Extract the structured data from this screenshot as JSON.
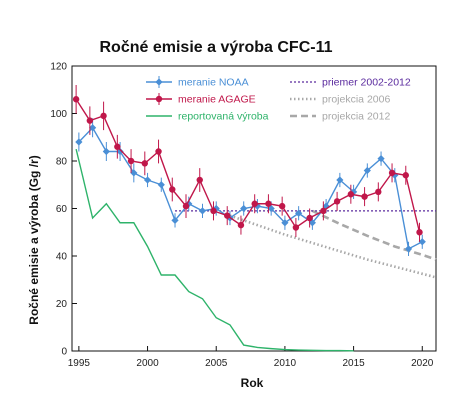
{
  "chart_data": {
    "type": "line",
    "title": "Ročné emisie a výroba CFC-11",
    "xlabel": "Rok",
    "ylabel": "Ročné emisie a výroba (Gg /r)",
    "xlim": [
      1994.5,
      2021
    ],
    "ylim": [
      0,
      120
    ],
    "x_ticks": [
      1995,
      2000,
      2005,
      2010,
      2015,
      2020
    ],
    "y_ticks": [
      0,
      20,
      40,
      60,
      80,
      100,
      120
    ],
    "grid": false,
    "legend_position": "top",
    "colors": {
      "noaa": "#4a8fd6",
      "agage": "#c0174a",
      "production": "#2eb36a",
      "mean": "#5a2a9e",
      "proj2006": "#a8a8a8",
      "proj2012": "#a8a8a8"
    },
    "series": [
      {
        "name": "meranie NOAA",
        "key": "noaa",
        "style": "line-markers-errorbars",
        "marker": "diamond",
        "x": [
          1995,
          1996,
          1997,
          1998,
          1999,
          2000,
          2001,
          2002,
          2003,
          2004,
          2005,
          2006,
          2007,
          2008,
          2009,
          2010,
          2011,
          2012,
          2013,
          2014,
          2015,
          2016,
          2017,
          2018,
          2019,
          2020
        ],
        "y": [
          88,
          94,
          84,
          84,
          75,
          72,
          70,
          55,
          62,
          59,
          60,
          56,
          60,
          61,
          60,
          54,
          58,
          54,
          61,
          72,
          67,
          76,
          81,
          74,
          43,
          46
        ],
        "err": [
          4,
          4,
          4,
          4,
          4,
          3,
          3,
          3,
          3,
          3,
          3,
          3,
          3,
          3,
          3,
          3,
          3,
          3,
          3,
          3,
          3,
          3,
          3,
          3,
          3,
          3
        ]
      },
      {
        "name": "meranie AGAGE",
        "key": "agage",
        "style": "line-markers-errorbars",
        "marker": "circle",
        "x": [
          1994.8,
          1995.8,
          1996.8,
          1997.8,
          1998.8,
          1999.8,
          2000.8,
          2001.8,
          2002.8,
          2003.8,
          2004.8,
          2005.8,
          2006.8,
          2007.8,
          2008.8,
          2009.8,
          2010.8,
          2011.8,
          2012.8,
          2013.8,
          2014.8,
          2015.8,
          2016.8,
          2017.8,
          2018.8,
          2019.8
        ],
        "y": [
          106,
          97,
          99,
          86,
          80,
          79,
          84,
          68,
          61,
          72,
          59,
          57,
          53,
          62,
          62,
          61,
          52,
          56,
          59,
          63,
          66,
          65,
          67,
          75,
          74,
          50
        ],
        "err": [
          6,
          6,
          6,
          5,
          5,
          5,
          5,
          5,
          5,
          5,
          4,
          4,
          4,
          4,
          4,
          4,
          4,
          4,
          4,
          4,
          4,
          4,
          4,
          4,
          4,
          4
        ]
      },
      {
        "name": "reportovaná výroba",
        "key": "production",
        "style": "line",
        "x": [
          1994.8,
          1995.3,
          1996,
          1997,
          1998,
          1999,
          2000,
          2001,
          2002,
          2003,
          2004,
          2005,
          2006,
          2007,
          2008,
          2009,
          2010,
          2011,
          2012,
          2013,
          2014,
          2015
        ],
        "y": [
          85,
          73,
          56,
          62,
          54,
          54,
          44,
          32,
          32,
          25,
          22,
          14,
          11,
          2.5,
          1.5,
          1,
          0.6,
          0.4,
          0.3,
          0.2,
          0.2,
          0.1
        ]
      },
      {
        "name": "priemer 2002-2012",
        "key": "mean",
        "style": "dotted",
        "x": [
          2002,
          2021
        ],
        "y": [
          59,
          59
        ]
      },
      {
        "name": "projekcia 2006",
        "key": "proj2006",
        "style": "dotted-thick",
        "x": [
          2006,
          2008,
          2010,
          2012,
          2014,
          2016,
          2018,
          2021
        ],
        "y": [
          57,
          53,
          49,
          45.5,
          42,
          38.5,
          35.5,
          31
        ]
      },
      {
        "name": "projekcia 2012",
        "key": "proj2012",
        "style": "dashed-thick",
        "x": [
          2012,
          2014,
          2016,
          2018,
          2020,
          2021
        ],
        "y": [
          59,
          53.5,
          48.5,
          44,
          40.5,
          38.5
        ]
      }
    ]
  }
}
